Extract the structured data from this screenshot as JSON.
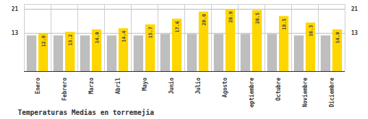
{
  "chart_data": {
    "type": "bar",
    "title": "Temperaturas Medias en torremejia",
    "categories": [
      "Enero",
      "Febrero",
      "Marzo",
      "Abril",
      "Mayo",
      "Junio",
      "Julio",
      "Agosto",
      "Septiembre",
      "Octubre",
      "Noviembre",
      "Diciembre"
    ],
    "series": [
      {
        "color": "#BEBEBE",
        "values": [
          12.0,
          12.0,
          12.0,
          12.0,
          12.0,
          12.5,
          12.5,
          12.5,
          12.5,
          12.5,
          12.0,
          12.0
        ]
      },
      {
        "color": "#FFD700",
        "values": [
          12.8,
          13.2,
          14.0,
          14.4,
          15.7,
          17.6,
          20.0,
          20.9,
          20.5,
          18.5,
          16.3,
          14.0
        ],
        "value_labels": [
          "12.8",
          "13.2",
          "14.0",
          "14.4",
          "15.7",
          "17.6",
          "20.0",
          "20.9",
          "20.5",
          "18.5",
          "16.3",
          "14.0"
        ],
        "data_labels": true
      }
    ],
    "ylim": [
      0,
      22.5
    ],
    "yticks": [
      12.8,
      20.9
    ],
    "grid": true
  }
}
